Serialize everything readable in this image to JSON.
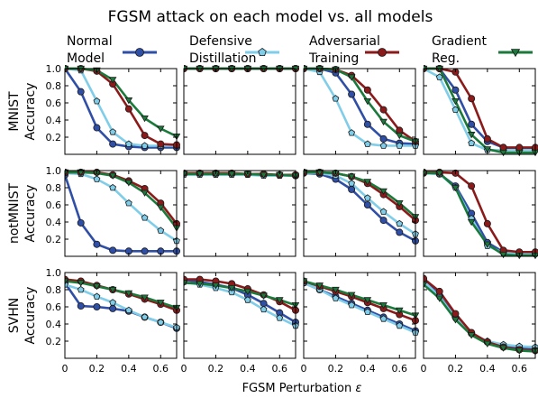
{
  "title": "FGSM attack on each model vs. all models",
  "xlabel_prefix": "FGSM Perturbation ",
  "xlabel_symbol": "ε",
  "legend": [
    {
      "lines": [
        "Normal",
        "Model"
      ],
      "color": "#2f4ea6",
      "marker": "circle"
    },
    {
      "lines": [
        "Defensive",
        "Distillation"
      ],
      "color": "#7fcde8",
      "marker": "pentagon"
    },
    {
      "lines": [
        "Adversarial",
        "Training"
      ],
      "color": "#8b1a1a",
      "marker": "circle"
    },
    {
      "lines": [
        "Gradient",
        "Reg."
      ],
      "color": "#1b7a3b",
      "marker": "triangle-down"
    }
  ],
  "chart_data": {
    "type": "line",
    "title": "FGSM attack on each model vs. all models",
    "xlabel": "FGSM Perturbation ε",
    "x": [
      0,
      0.1,
      0.2,
      0.3,
      0.4,
      0.5,
      0.6,
      0.7
    ],
    "xlim": [
      0,
      0.7
    ],
    "ylim": [
      0,
      1.0
    ],
    "xticks": [
      "0",
      "0.2",
      "0.4",
      "0.6"
    ],
    "yticks": [
      "0.2",
      "0.4",
      "0.6",
      "0.8",
      "1.0"
    ],
    "grid": false,
    "legend_position": "top",
    "series_names": [
      "Normal Model",
      "Defensive Distillation",
      "Adversarial Training",
      "Gradient Reg."
    ],
    "rows": [
      {
        "ylabel_lines": [
          "MNIST",
          "Accuracy"
        ],
        "panels": [
          [
            [
              1.0,
              0.73,
              0.31,
              0.12,
              0.09,
              0.08,
              0.08,
              0.08
            ],
            [
              1.0,
              0.98,
              0.62,
              0.26,
              0.12,
              0.1,
              0.1,
              0.1
            ],
            [
              1.0,
              1.0,
              0.97,
              0.82,
              0.53,
              0.22,
              0.12,
              0.11
            ],
            [
              1.0,
              1.0,
              0.98,
              0.87,
              0.63,
              0.42,
              0.3,
              0.21
            ]
          ],
          [
            [
              1.0,
              1.0,
              1.0,
              1.0,
              1.0,
              1.0,
              1.0,
              1.0
            ],
            [
              1.0,
              1.0,
              1.0,
              1.0,
              1.0,
              1.0,
              1.0,
              1.0
            ],
            [
              1.0,
              1.0,
              1.0,
              1.0,
              1.0,
              1.0,
              1.0,
              1.0
            ],
            [
              1.0,
              1.0,
              1.0,
              1.0,
              1.0,
              1.0,
              1.0,
              1.0
            ]
          ],
          [
            [
              1.0,
              1.0,
              0.95,
              0.7,
              0.35,
              0.18,
              0.13,
              0.12
            ],
            [
              1.0,
              0.96,
              0.65,
              0.25,
              0.12,
              0.1,
              0.1,
              0.1
            ],
            [
              1.0,
              1.0,
              0.99,
              0.92,
              0.75,
              0.52,
              0.28,
              0.15
            ],
            [
              1.0,
              1.0,
              0.99,
              0.9,
              0.62,
              0.38,
              0.22,
              0.15
            ]
          ],
          [
            [
              1.0,
              1.0,
              0.75,
              0.35,
              0.15,
              0.08,
              0.06,
              0.06
            ],
            [
              1.0,
              0.9,
              0.52,
              0.13,
              0.05,
              0.05,
              0.05,
              0.05
            ],
            [
              1.0,
              1.0,
              0.96,
              0.65,
              0.18,
              0.08,
              0.08,
              0.08
            ],
            [
              1.0,
              1.0,
              0.62,
              0.23,
              0.06,
              0.02,
              0.02,
              0.02
            ]
          ]
        ]
      },
      {
        "ylabel_lines": [
          "notMNIST",
          "Accuracy"
        ],
        "panels": [
          [
            [
              0.95,
              0.39,
              0.14,
              0.07,
              0.06,
              0.06,
              0.06,
              0.06
            ],
            [
              0.97,
              0.96,
              0.9,
              0.8,
              0.62,
              0.45,
              0.3,
              0.18
            ],
            [
              0.98,
              0.98,
              0.98,
              0.95,
              0.88,
              0.79,
              0.62,
              0.38
            ],
            [
              0.98,
              0.98,
              0.97,
              0.94,
              0.86,
              0.74,
              0.57,
              0.33
            ]
          ],
          [
            [
              0.96,
              0.96,
              0.96,
              0.96,
              0.96,
              0.95,
              0.95,
              0.94
            ],
            [
              0.95,
              0.95,
              0.95,
              0.95,
              0.95,
              0.94,
              0.94,
              0.94
            ],
            [
              0.97,
              0.97,
              0.97,
              0.97,
              0.96,
              0.96,
              0.95,
              0.95
            ],
            [
              0.96,
              0.96,
              0.96,
              0.96,
              0.96,
              0.95,
              0.95,
              0.94
            ]
          ],
          [
            [
              0.97,
              0.96,
              0.9,
              0.78,
              0.6,
              0.42,
              0.28,
              0.18
            ],
            [
              0.97,
              0.97,
              0.94,
              0.85,
              0.68,
              0.52,
              0.38,
              0.26
            ],
            [
              0.98,
              0.98,
              0.97,
              0.93,
              0.85,
              0.72,
              0.58,
              0.42
            ],
            [
              0.98,
              0.98,
              0.97,
              0.93,
              0.87,
              0.76,
              0.62,
              0.46
            ]
          ],
          [
            [
              0.97,
              0.96,
              0.82,
              0.5,
              0.16,
              0.05,
              0.03,
              0.03
            ],
            [
              0.97,
              0.96,
              0.8,
              0.44,
              0.12,
              0.04,
              0.03,
              0.03
            ],
            [
              0.98,
              0.98,
              0.97,
              0.82,
              0.38,
              0.07,
              0.05,
              0.05
            ],
            [
              0.97,
              0.97,
              0.8,
              0.4,
              0.14,
              0.02,
              0.01,
              0.01
            ]
          ]
        ]
      },
      {
        "ylabel_lines": [
          "SVHN",
          "Accuracy"
        ],
        "panels": [
          [
            [
              0.88,
              0.61,
              0.6,
              0.58,
              0.55,
              0.48,
              0.42,
              0.35
            ],
            [
              0.86,
              0.8,
              0.72,
              0.65,
              0.56,
              0.48,
              0.42,
              0.36
            ],
            [
              0.92,
              0.9,
              0.85,
              0.8,
              0.75,
              0.69,
              0.63,
              0.56
            ],
            [
              0.9,
              0.88,
              0.84,
              0.8,
              0.76,
              0.71,
              0.65,
              0.59
            ]
          ],
          [
            [
              0.91,
              0.89,
              0.86,
              0.82,
              0.74,
              0.64,
              0.53,
              0.42
            ],
            [
              0.89,
              0.86,
              0.82,
              0.77,
              0.68,
              0.57,
              0.47,
              0.38
            ],
            [
              0.92,
              0.92,
              0.9,
              0.87,
              0.81,
              0.74,
              0.66,
              0.56
            ],
            [
              0.88,
              0.87,
              0.85,
              0.82,
              0.78,
              0.73,
              0.68,
              0.62
            ]
          ],
          [
            [
              0.88,
              0.8,
              0.72,
              0.64,
              0.56,
              0.48,
              0.4,
              0.32
            ],
            [
              0.88,
              0.8,
              0.7,
              0.62,
              0.54,
              0.46,
              0.38,
              0.3
            ],
            [
              0.9,
              0.84,
              0.78,
              0.72,
              0.65,
              0.58,
              0.51,
              0.44
            ],
            [
              0.9,
              0.85,
              0.8,
              0.74,
              0.68,
              0.62,
              0.56,
              0.5
            ]
          ],
          [
            [
              0.93,
              0.73,
              0.48,
              0.29,
              0.19,
              0.14,
              0.12,
              0.11
            ],
            [
              0.9,
              0.72,
              0.47,
              0.29,
              0.2,
              0.16,
              0.14,
              0.13
            ],
            [
              0.93,
              0.78,
              0.52,
              0.3,
              0.19,
              0.13,
              0.1,
              0.09
            ],
            [
              0.86,
              0.7,
              0.45,
              0.27,
              0.17,
              0.12,
              0.09,
              0.08
            ]
          ]
        ]
      }
    ]
  }
}
